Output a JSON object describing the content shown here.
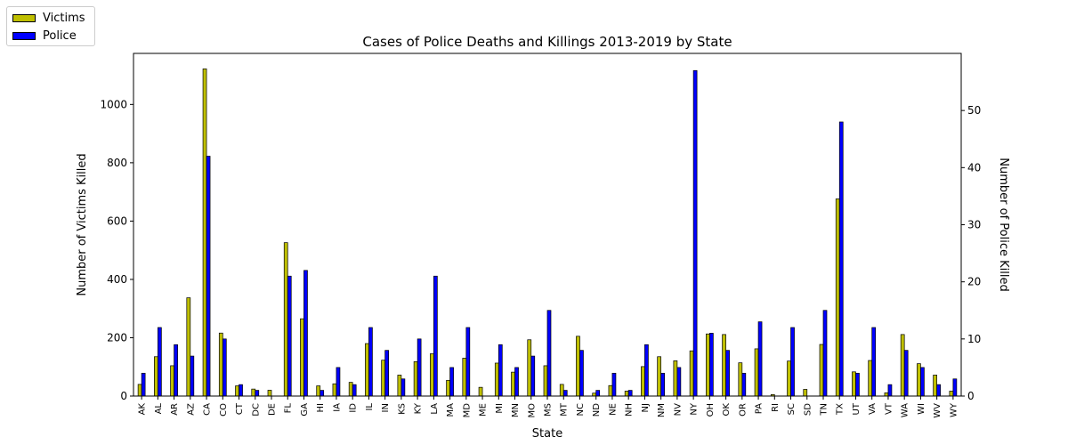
{
  "chart_data": {
    "type": "bar",
    "title": "Cases of Police Deaths and Killings 2013-2019 by State",
    "xlabel": "State",
    "ylabel_left": "Number of Victims Killed",
    "ylabel_right": "Number of Police Killed",
    "ylim_left": [
      0,
      1175
    ],
    "ylim_right": [
      0,
      60
    ],
    "yticks_left": [
      "0",
      "200",
      "400",
      "600",
      "800",
      "1000"
    ],
    "yticks_right": [
      "0",
      "10",
      "20",
      "30",
      "40",
      "50"
    ],
    "legend_position": "top-left",
    "categories": [
      "AK",
      "AL",
      "AR",
      "AZ",
      "CA",
      "CO",
      "CT",
      "DC",
      "DE",
      "FL",
      "GA",
      "HI",
      "IA",
      "ID",
      "IL",
      "IN",
      "KS",
      "KY",
      "LA",
      "MA",
      "MD",
      "ME",
      "MI",
      "MN",
      "MO",
      "MS",
      "MT",
      "NC",
      "ND",
      "NE",
      "NH",
      "NJ",
      "NM",
      "NV",
      "NY",
      "OH",
      "OK",
      "OR",
      "PA",
      "RI",
      "SC",
      "SD",
      "TN",
      "TX",
      "UT",
      "VA",
      "VT",
      "WA",
      "WI",
      "WV",
      "WY"
    ],
    "series": [
      {
        "name": "Victims",
        "axis": "left",
        "color": "#bfbf00",
        "values": [
          40,
          135,
          104,
          337,
          1122,
          216,
          35,
          24,
          20,
          526,
          265,
          35,
          42,
          47,
          180,
          123,
          72,
          118,
          145,
          54,
          130,
          30,
          113,
          82,
          193,
          104,
          40,
          205,
          10,
          36,
          17,
          101,
          135,
          121,
          155,
          213,
          211,
          114,
          162,
          5,
          120,
          23,
          177,
          676,
          83,
          122,
          11,
          211,
          111,
          72,
          17
        ]
      },
      {
        "name": "Police",
        "axis": "right",
        "color": "#0000ff",
        "values": [
          4,
          12,
          9,
          7,
          42,
          10,
          2,
          1,
          0,
          21,
          22,
          1,
          5,
          2,
          12,
          8,
          3,
          10,
          21,
          5,
          12,
          0,
          9,
          5,
          7,
          15,
          1,
          8,
          1,
          4,
          1,
          9,
          4,
          5,
          57,
          11,
          8,
          4,
          13,
          0,
          12,
          0,
          15,
          48,
          4,
          12,
          2,
          8,
          5,
          2,
          3
        ]
      }
    ]
  }
}
